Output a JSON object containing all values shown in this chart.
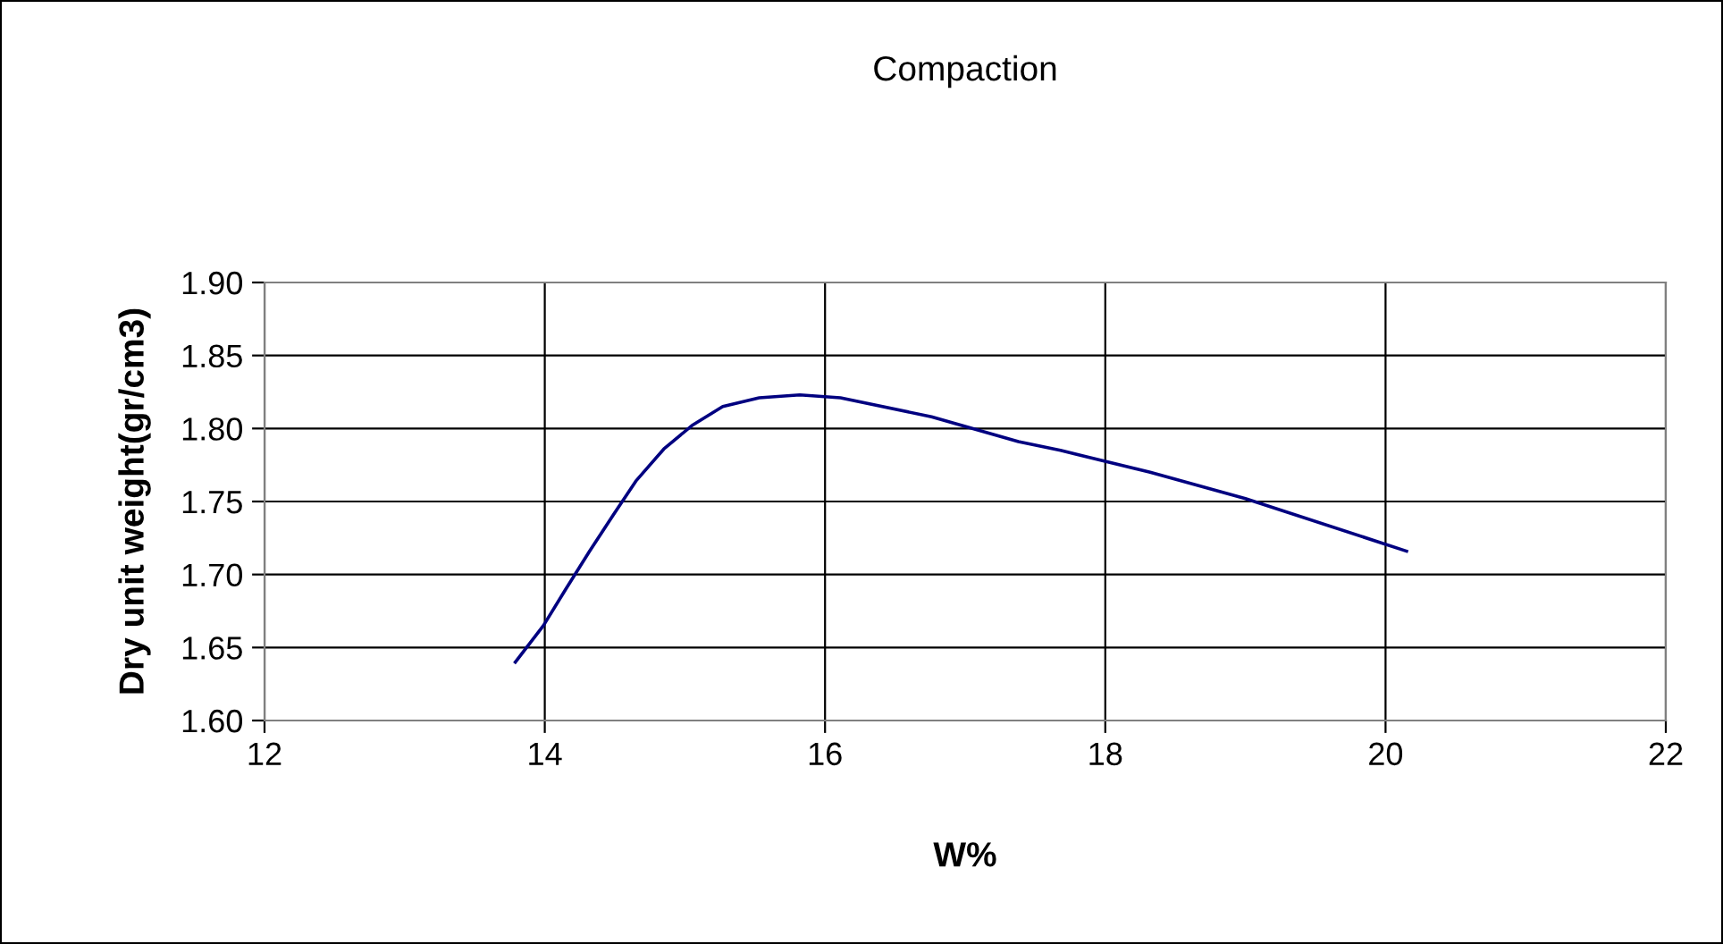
{
  "chart_data": {
    "type": "line",
    "title": "Compaction",
    "xlabel": "W%",
    "ylabel": "Dry unit weight(gr/cm3)",
    "x": [
      13.79,
      13.99,
      14.15,
      14.32,
      14.49,
      14.65,
      14.85,
      15.05,
      15.27,
      15.53,
      15.82,
      16.11,
      16.76,
      17.38,
      17.68,
      18.32,
      19.0,
      20.15
    ],
    "series": [
      {
        "color": "#000080",
        "values": [
          1.64,
          1.665,
          1.69,
          1.716,
          1.741,
          1.764,
          1.786,
          1.802,
          1.815,
          1.821,
          1.823,
          1.821,
          1.808,
          1.791,
          1.785,
          1.77,
          1.752,
          1.716
        ]
      }
    ],
    "xlim": [
      12,
      22
    ],
    "xticks": [
      12,
      14,
      16,
      18,
      20,
      22
    ],
    "ylim": [
      1.6,
      1.9
    ],
    "yticks": [
      {
        "value": 1.6,
        "label": "1.60"
      },
      {
        "value": 1.65,
        "label": "1.65"
      },
      {
        "value": 1.7,
        "label": "1.70"
      },
      {
        "value": 1.75,
        "label": "1.75"
      },
      {
        "value": 1.8,
        "label": "1.80"
      },
      {
        "value": 1.85,
        "label": "1.85"
      },
      {
        "value": 1.9,
        "label": "1.90"
      }
    ],
    "grid": true,
    "marker": "none",
    "line_style": "solid",
    "legend": false
  }
}
